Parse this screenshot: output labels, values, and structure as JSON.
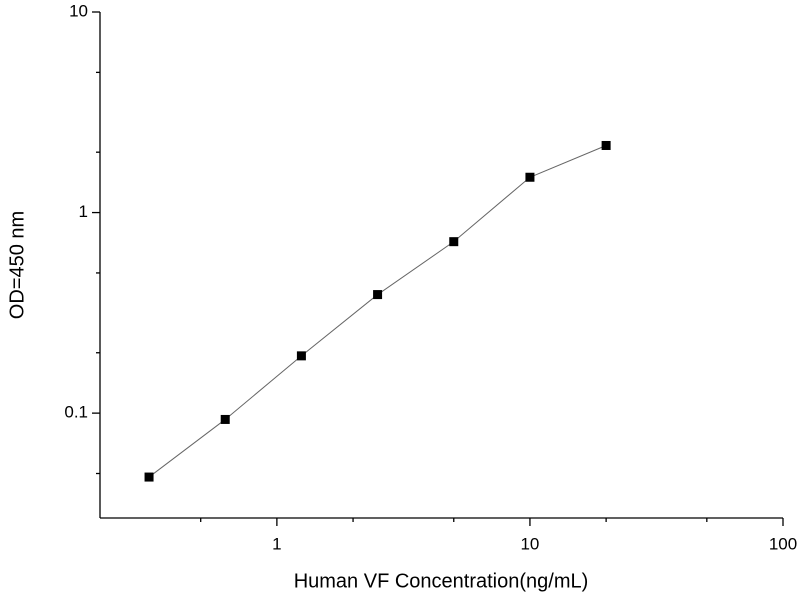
{
  "chart_data": {
    "type": "line",
    "x_label": "Human VF Concentration(ng/mL)",
    "y_label": "OD=450 nm",
    "x": [
      0.3125,
      0.625,
      1.25,
      2.5,
      5,
      10,
      20
    ],
    "values": [
      0.048,
      0.093,
      0.193,
      0.39,
      0.716,
      1.5,
      2.16
    ],
    "color": "#000000",
    "line_color": "#666666",
    "xlim": [
      0.2,
      100
    ],
    "xticks": [
      1,
      10,
      100
    ],
    "xminorticks": [
      0.5,
      2,
      5,
      20,
      50
    ],
    "ylim": [
      0.03,
      10
    ],
    "yticks": [
      0.1,
      1,
      10
    ],
    "yminorticks": [
      0.05,
      0.2,
      0.5,
      2,
      5
    ],
    "x_log": true,
    "y_log": true,
    "grid": false
  }
}
